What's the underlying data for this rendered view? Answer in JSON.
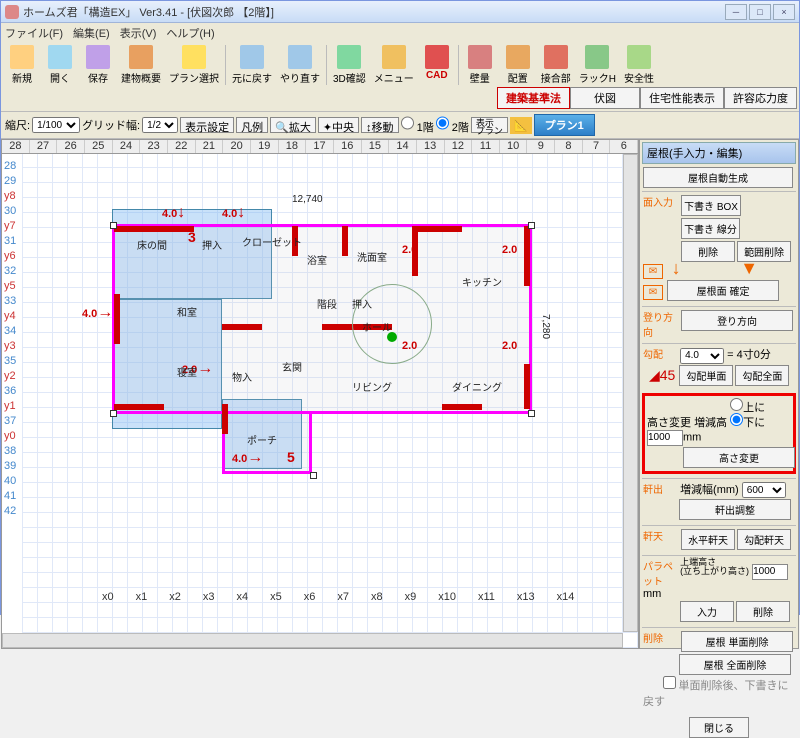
{
  "title": "ホームズ君「構造EX」 Ver3.41 - [伏図次郎 【2階】]",
  "menus": [
    "ファイル(F)",
    "編集(E)",
    "表示(V)",
    "ヘルプ(H)"
  ],
  "toolbar": [
    {
      "lbl": "新規",
      "c": "#ffd080"
    },
    {
      "lbl": "開く",
      "c": "#a0d8f0"
    },
    {
      "lbl": "保存",
      "c": "#c0a0e8"
    },
    {
      "lbl": "建物概要",
      "c": "#e8a060"
    },
    {
      "lbl": "プラン選択",
      "c": "#ffe060"
    },
    {
      "lbl": "元に戻す",
      "c": "#a0c8e8"
    },
    {
      "lbl": "やり直す",
      "c": "#a0c8e8"
    },
    {
      "lbl": "3D確認",
      "c": "#80d8a0"
    },
    {
      "lbl": "メニュー",
      "c": "#f0c060"
    },
    {
      "lbl": "CAD",
      "c": "#e05050"
    },
    {
      "lbl": "壁量",
      "c": "#d88080"
    },
    {
      "lbl": "配置",
      "c": "#e8a860"
    },
    {
      "lbl": "接合部",
      "c": "#e07060"
    },
    {
      "lbl": "ラックH",
      "c": "#88c888"
    },
    {
      "lbl": "安全性",
      "c": "#a8d888"
    }
  ],
  "tabs": [
    {
      "lbl": "建築基準法",
      "red": true
    },
    {
      "lbl": "伏図",
      "red": false
    },
    {
      "lbl": "住宅性能表示",
      "red": false
    },
    {
      "lbl": "許容応力度",
      "red": false
    }
  ],
  "row2": {
    "scale_lbl": "縮尺:",
    "scale_val": "1/100",
    "grid_lbl": "グリッド幅:",
    "grid_val": "1/2",
    "disp": "表示設定",
    "legend": "凡例",
    "zoom": "拡大",
    "center": "中央",
    "move": "移動",
    "fl1": "1階",
    "fl2": "2階",
    "disp2": "表示\nプラン",
    "plan": "プラン1"
  },
  "ruler_top": [
    "28",
    "27",
    "26",
    "25",
    "24",
    "23",
    "22",
    "21",
    "20",
    "19",
    "18",
    "17",
    "16",
    "15",
    "14",
    "13",
    "12",
    "11",
    "10",
    "9",
    "8",
    "7",
    "6"
  ],
  "axis_x": [
    "x0",
    "x1",
    "x2",
    "x3",
    "x4",
    "x5",
    "x6",
    "x7",
    "x8",
    "x9",
    "x10",
    "x11",
    "x13",
    "x14"
  ],
  "axis_y": [
    "28",
    "29",
    "y8",
    "30",
    "y7",
    "31",
    "y6",
    "32",
    "y5",
    "33",
    "y4",
    "34",
    "y3",
    "35",
    "y2",
    "36",
    "y1",
    "37",
    "y0",
    "38",
    "39",
    "40",
    "41",
    "42"
  ],
  "plan_labels": [
    "床の間",
    "押入",
    "クローゼット",
    "浴室",
    "洗面室",
    "キッチン",
    "階段",
    "押入",
    "和室",
    "ホール",
    "玄関",
    "物入",
    "リビング",
    "ダイニング",
    "ポーチ",
    "寝室"
  ],
  "dims_w": "12,740",
  "dims_h": "7,280",
  "red_dims": [
    "4.0",
    "4.0",
    "4.0",
    "3",
    "2.0",
    "2.0",
    "2.0",
    "2.0",
    "2.0",
    "4.0",
    "5"
  ],
  "panel": {
    "title": "屋根(手入力・編集)",
    "auto": "屋根自動生成",
    "face": "面入力",
    "btns_face": [
      "下書き BOX",
      "下書き 線分",
      "削除",
      "範囲削除"
    ],
    "confirm": "屋根面 確定",
    "climb": "登り方向",
    "climb_btn": "登り方向",
    "slope": "勾配",
    "slope_val": "4.0",
    "slope_txt": "= 4寸0分",
    "slope_b1": "勾配単面",
    "slope_b2": "勾配全面",
    "height": "高さ変更",
    "inc": "増減高",
    "up": "上に",
    "down": "下に",
    "hval": "1000",
    "hunit": "mm",
    "hbtn": "高さ変更",
    "eave": "軒出",
    "eave_lbl": "増減幅(mm)",
    "eave_val": "600",
    "eave_btn": "軒出調整",
    "soffit": "軒天",
    "sof_b1": "水平軒天",
    "sof_b2": "勾配軒天",
    "parapet": "パラペット",
    "par_lbl": "上端高さ\n(立ち上がり高さ)",
    "par_val": "1000",
    "par_u": "mm",
    "par_b1": "入力",
    "par_b2": "削除",
    "del": "削除",
    "del_b1": "屋根 単面削除",
    "del_b2": "屋根 全面削除",
    "chk": "単面削除後、下書きに戻す",
    "close": "閉じる"
  },
  "colors": {
    "magenta": "#f000f0",
    "red": "#c00000",
    "blue": "#4488cc",
    "grid": "#e0e8f8",
    "bluefill": "#78b4f0"
  }
}
